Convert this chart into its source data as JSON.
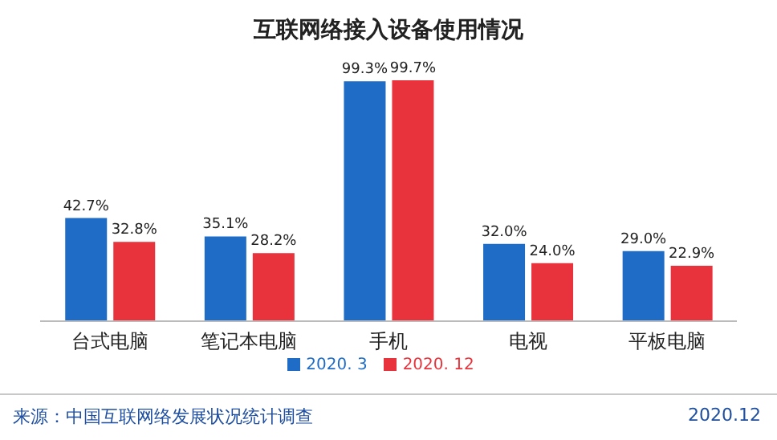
{
  "chart_data": {
    "type": "bar",
    "title": "互联网络接入设备使用情况",
    "categories": [
      "台式电脑",
      "笔记本电脑",
      "手机",
      "电视",
      "平板电脑"
    ],
    "series": [
      {
        "name": "2020. 3",
        "color": "#1f6cc7",
        "values": [
          42.7,
          35.1,
          99.3,
          32.0,
          29.0
        ],
        "value_labels": [
          "42.7%",
          "35.1%",
          "99.3%",
          "32.0%",
          "29.0%"
        ]
      },
      {
        "name": "2020. 12",
        "color": "#e8323c",
        "values": [
          32.8,
          28.2,
          99.7,
          24.0,
          22.9
        ],
        "value_labels": [
          "32.8%",
          "28.2%",
          "99.7%",
          "24.0%",
          "22.9%"
        ]
      }
    ],
    "legend": "bottom",
    "annotations": [
      "来源：中国互联网络发展状况统计调查",
      "2020.12"
    ]
  }
}
